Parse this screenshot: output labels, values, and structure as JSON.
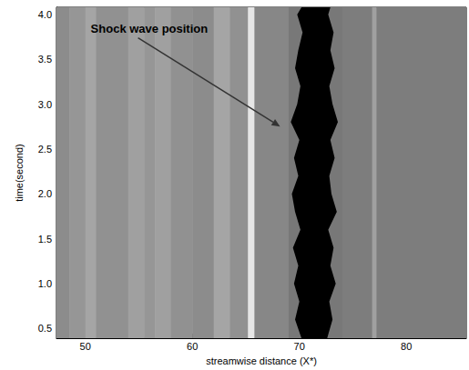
{
  "chart_data": {
    "type": "heatmap",
    "xlabel": "streamwise distance (X*)",
    "ylabel": "time(second)",
    "xlim": [
      47.3,
      85.6
    ],
    "ylim": [
      0.39,
      4.08
    ],
    "xticks": [
      50,
      60,
      70,
      80
    ],
    "yticks": [
      0.5,
      {
        "value": 1,
        "label": "1.0"
      },
      1.5,
      {
        "value": 2,
        "label": "2.0"
      },
      2.5,
      {
        "value": 3,
        "label": "3.0"
      },
      3.5,
      {
        "value": 4,
        "label": "4.0"
      }
    ],
    "x_edges": [
      47.3,
      48.5,
      50,
      51,
      54,
      55.5,
      56.5,
      58,
      60,
      62,
      63.5,
      65.2,
      65.8,
      69,
      74,
      76.8,
      77.2,
      85.6
    ],
    "gray": [
      140,
      150,
      165,
      145,
      160,
      150,
      160,
      145,
      140,
      165,
      145,
      230,
      135,
      120,
      125,
      160,
      125
    ],
    "shock": {
      "color": "#000000",
      "time": [
        0.39,
        0.6,
        0.8,
        1.0,
        1.2,
        1.4,
        1.6,
        1.8,
        2.0,
        2.2,
        2.4,
        2.6,
        2.8,
        3.0,
        3.2,
        3.4,
        3.6,
        3.8,
        4.0,
        4.08
      ],
      "left": [
        70.2,
        69.6,
        70.0,
        69.5,
        69.9,
        69.4,
        70.1,
        69.6,
        69.3,
        69.9,
        69.5,
        70.0,
        69.2,
        69.8,
        70.1,
        69.6,
        69.9,
        70.3,
        69.8,
        70.2
      ],
      "right": [
        72.6,
        73.1,
        72.8,
        73.4,
        72.9,
        73.2,
        72.7,
        73.5,
        73.0,
        72.8,
        73.3,
        72.9,
        73.6,
        73.1,
        72.8,
        73.3,
        72.9,
        73.2,
        72.7,
        72.9
      ]
    },
    "annotation": {
      "text": "Shock wave position",
      "xy": [
        68.2,
        2.75
      ],
      "xytext": [
        50.5,
        3.84
      ]
    }
  }
}
